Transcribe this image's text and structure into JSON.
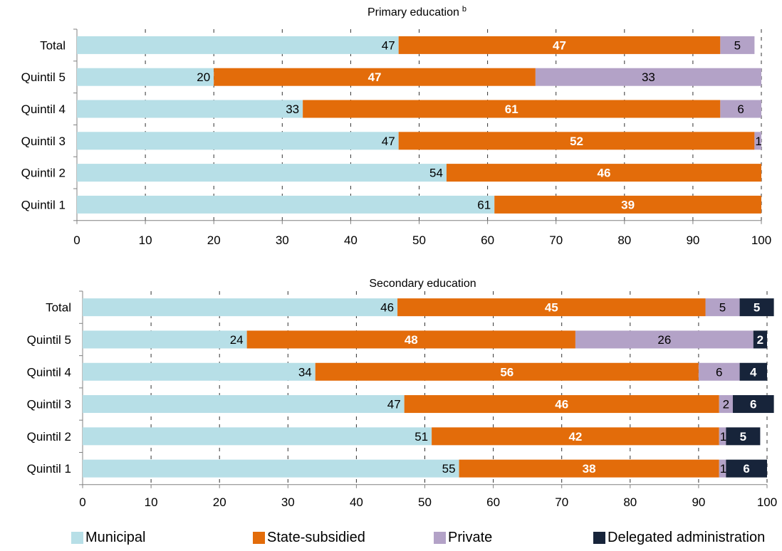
{
  "colors": {
    "municipal": "#b7dfe7",
    "state_subsidied": "#e36c0a",
    "private": "#b3a2c7",
    "delegated": "#17243a"
  },
  "legend": [
    {
      "key": "municipal",
      "label": "Municipal"
    },
    {
      "key": "state_subsidied",
      "label": "State-subsidied"
    },
    {
      "key": "private",
      "label": "Private"
    },
    {
      "key": "delegated",
      "label": "Delegated administration"
    }
  ],
  "chart_data": [
    {
      "type": "bar",
      "orientation": "horizontal",
      "stacked": true,
      "title": "Primary education",
      "title_superscript": "b",
      "categories": [
        "Total",
        "Quintil 5",
        "Quintil 4",
        "Quintil 3",
        "Quintil 2",
        "Quintil 1"
      ],
      "series": [
        {
          "name": "Municipal",
          "key": "municipal",
          "values": [
            47,
            20,
            33,
            47,
            54,
            61
          ]
        },
        {
          "name": "State-subsidied",
          "key": "state_subsidied",
          "values": [
            47,
            47,
            61,
            52,
            46,
            39
          ]
        },
        {
          "name": "Private",
          "key": "private",
          "values": [
            5,
            33,
            6,
            1,
            0,
            0
          ]
        },
        {
          "name": "Delegated administration",
          "key": "delegated",
          "values": [
            0,
            0,
            0,
            0,
            0,
            0
          ]
        }
      ],
      "xlim": [
        0,
        100
      ],
      "xticks": [
        0,
        10,
        20,
        30,
        40,
        50,
        60,
        70,
        80,
        90,
        100
      ],
      "grid": "vertical dashed"
    },
    {
      "type": "bar",
      "orientation": "horizontal",
      "stacked": true,
      "title": "Secondary education",
      "title_superscript": "",
      "categories": [
        "Total",
        "Quintil 5",
        "Quintil 4",
        "Quintil 3",
        "Quintil 2",
        "Quintil 1"
      ],
      "series": [
        {
          "name": "Municipal",
          "key": "municipal",
          "values": [
            46,
            24,
            34,
            47,
            51,
            55
          ]
        },
        {
          "name": "State-subsidied",
          "key": "state_subsidied",
          "values": [
            45,
            48,
            56,
            46,
            42,
            38
          ]
        },
        {
          "name": "Private",
          "key": "private",
          "values": [
            5,
            26,
            6,
            2,
            1,
            1
          ]
        },
        {
          "name": "Delegated administration",
          "key": "delegated",
          "values": [
            5,
            2,
            4,
            6,
            5,
            6
          ]
        }
      ],
      "xlim": [
        0,
        100
      ],
      "xticks": [
        0,
        10,
        20,
        30,
        40,
        50,
        60,
        70,
        80,
        90,
        100
      ],
      "grid": "vertical dashed"
    }
  ]
}
